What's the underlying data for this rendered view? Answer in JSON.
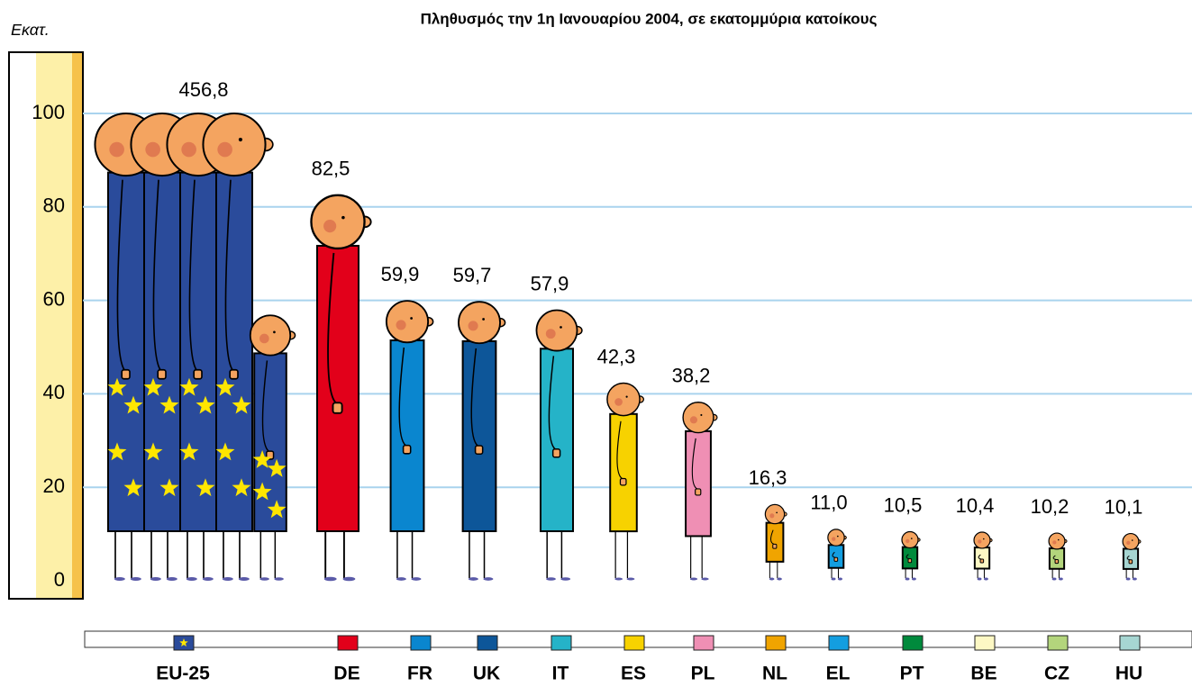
{
  "chart_data": {
    "type": "pictogram",
    "title": "Πληθυσμός την 1η Ιανουαρίου 2004, σε εκατομμύρια κατοίκους",
    "y_label": "Εκατ.",
    "categories": [
      "EU-25",
      "DE",
      "FR",
      "UK",
      "IT",
      "ES",
      "PL",
      "NL",
      "EL",
      "PT",
      "BE",
      "CZ",
      "HU"
    ],
    "values": [
      456.8,
      82.5,
      59.9,
      59.7,
      57.9,
      42.3,
      38.2,
      16.3,
      11.0,
      10.5,
      10.4,
      10.2,
      10.1
    ],
    "value_labels": [
      "456,8",
      "82,5",
      "59,9",
      "59,7",
      "57,9",
      "42,3",
      "38,2",
      "16,3",
      "11,0",
      "10,5",
      "10,4",
      "10,2",
      "10,1"
    ],
    "colors": [
      "#2a4b9b",
      "#e2001a",
      "#0a86cf",
      "#0d5699",
      "#25b3c8",
      "#f7d200",
      "#ef8fb4",
      "#f0a400",
      "#139ee0",
      "#008a3c",
      "#fdf8c4",
      "#b3d57c",
      "#a6d6d2"
    ],
    "ylim": [
      0,
      100
    ],
    "yticks": [
      0,
      20,
      40,
      60,
      80,
      100
    ],
    "grid": true
  }
}
